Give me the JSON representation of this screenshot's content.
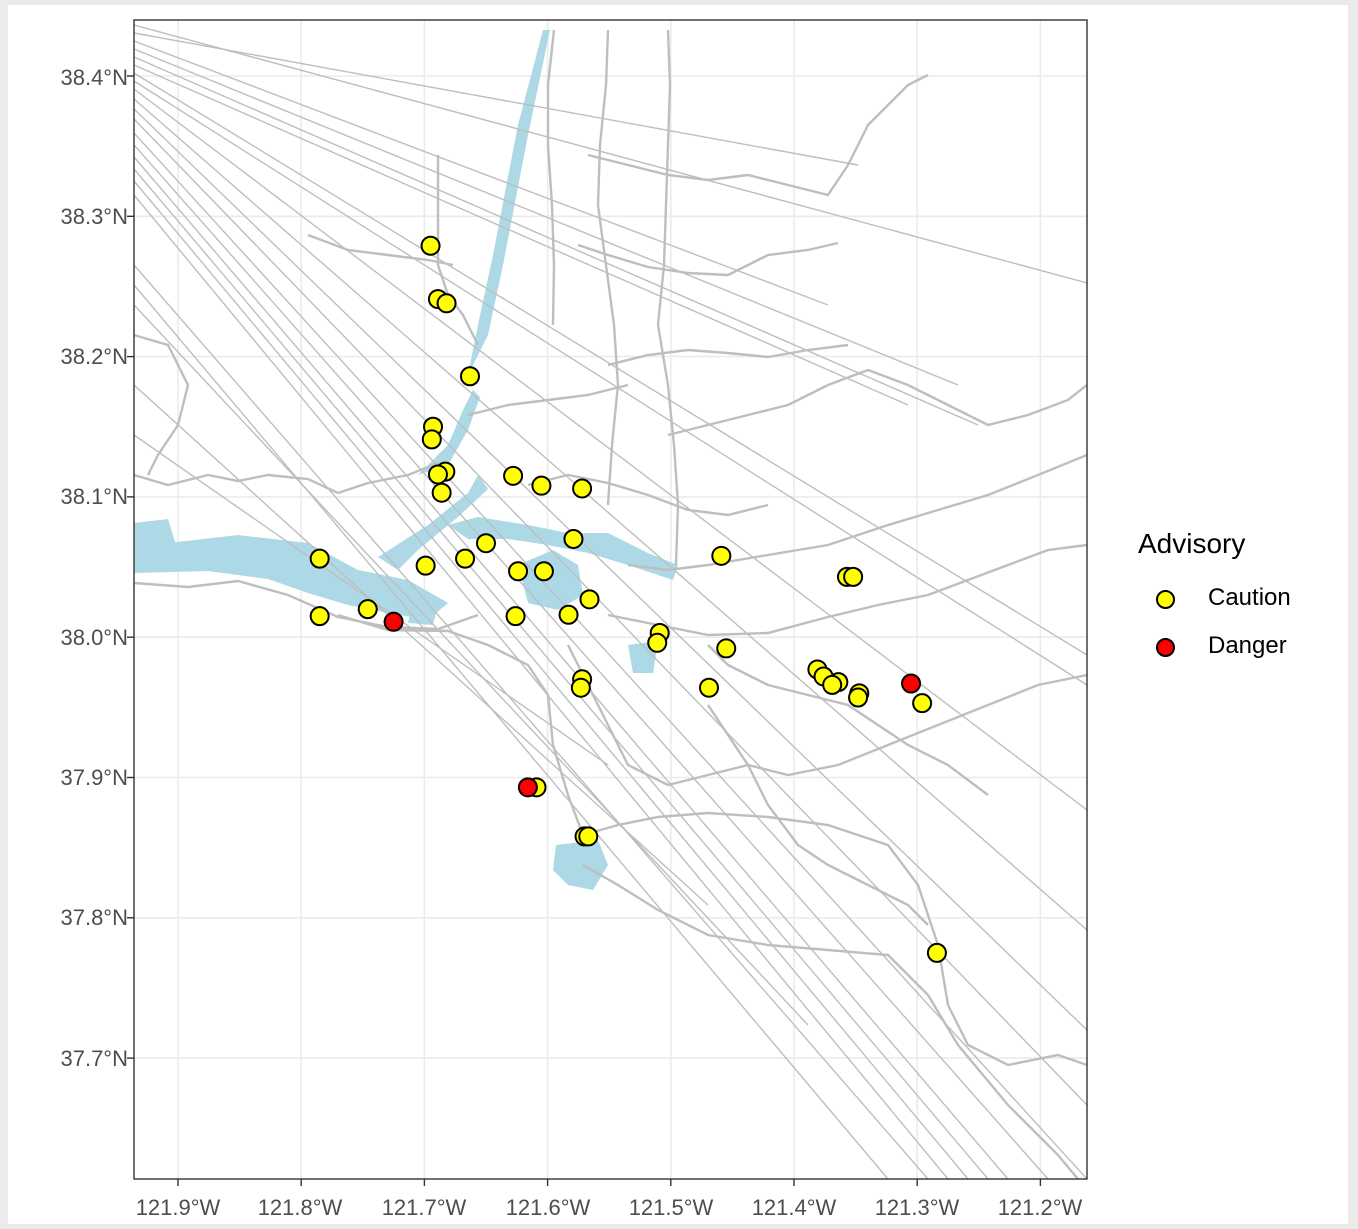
{
  "map": {
    "axis": {
      "lat_ticks": [
        "38.4°N",
        "38.3°N",
        "38.2°N",
        "38.1°N",
        "38.0°N",
        "37.9°N",
        "37.8°N",
        "37.7°N"
      ],
      "lon_ticks": [
        "121.9°W",
        "121.8°W",
        "121.7°W",
        "121.6°W",
        "121.5°W",
        "121.4°W",
        "121.3°W",
        "121.2°W"
      ]
    },
    "colors": {
      "water": "#add8e6",
      "linework": "#bebebe",
      "grid": "#ebebeb",
      "caution": "#ffff00",
      "danger": "#ff0000"
    },
    "legend": {
      "title": "Advisory",
      "items": [
        {
          "label": "Caution",
          "color": "#ffff00"
        },
        {
          "label": "Danger",
          "color": "#ff0000"
        }
      ]
    },
    "points": [
      {
        "lon": -121.695,
        "lat": 38.279,
        "advisory": "Caution"
      },
      {
        "lon": -121.689,
        "lat": 38.241,
        "advisory": "Caution"
      },
      {
        "lon": -121.682,
        "lat": 38.238,
        "advisory": "Caution"
      },
      {
        "lon": -121.663,
        "lat": 38.186,
        "advisory": "Caution"
      },
      {
        "lon": -121.693,
        "lat": 38.15,
        "advisory": "Caution"
      },
      {
        "lon": -121.694,
        "lat": 38.141,
        "advisory": "Caution"
      },
      {
        "lon": -121.683,
        "lat": 38.118,
        "advisory": "Caution"
      },
      {
        "lon": -121.689,
        "lat": 38.116,
        "advisory": "Caution"
      },
      {
        "lon": -121.686,
        "lat": 38.103,
        "advisory": "Caution"
      },
      {
        "lon": -121.628,
        "lat": 38.115,
        "advisory": "Caution"
      },
      {
        "lon": -121.605,
        "lat": 38.108,
        "advisory": "Caution"
      },
      {
        "lon": -121.572,
        "lat": 38.106,
        "advisory": "Caution"
      },
      {
        "lon": -121.65,
        "lat": 38.067,
        "advisory": "Caution"
      },
      {
        "lon": -121.667,
        "lat": 38.056,
        "advisory": "Caution"
      },
      {
        "lon": -121.699,
        "lat": 38.051,
        "advisory": "Caution"
      },
      {
        "lon": -121.785,
        "lat": 38.056,
        "advisory": "Caution"
      },
      {
        "lon": -121.624,
        "lat": 38.047,
        "advisory": "Caution"
      },
      {
        "lon": -121.603,
        "lat": 38.047,
        "advisory": "Caution"
      },
      {
        "lon": -121.579,
        "lat": 38.07,
        "advisory": "Caution"
      },
      {
        "lon": -121.459,
        "lat": 38.058,
        "advisory": "Caution"
      },
      {
        "lon": -121.357,
        "lat": 38.043,
        "advisory": "Caution"
      },
      {
        "lon": -121.352,
        "lat": 38.043,
        "advisory": "Caution"
      },
      {
        "lon": -121.566,
        "lat": 38.027,
        "advisory": "Caution"
      },
      {
        "lon": -121.746,
        "lat": 38.02,
        "advisory": "Caution"
      },
      {
        "lon": -121.785,
        "lat": 38.015,
        "advisory": "Caution"
      },
      {
        "lon": -121.725,
        "lat": 38.011,
        "advisory": "Danger"
      },
      {
        "lon": -121.626,
        "lat": 38.015,
        "advisory": "Caution"
      },
      {
        "lon": -121.583,
        "lat": 38.016,
        "advisory": "Caution"
      },
      {
        "lon": -121.509,
        "lat": 38.003,
        "advisory": "Caution"
      },
      {
        "lon": -121.511,
        "lat": 37.996,
        "advisory": "Caution"
      },
      {
        "lon": -121.455,
        "lat": 37.992,
        "advisory": "Caution"
      },
      {
        "lon": -121.572,
        "lat": 37.97,
        "advisory": "Caution"
      },
      {
        "lon": -121.573,
        "lat": 37.964,
        "advisory": "Caution"
      },
      {
        "lon": -121.469,
        "lat": 37.964,
        "advisory": "Caution"
      },
      {
        "lon": -121.381,
        "lat": 37.977,
        "advisory": "Caution"
      },
      {
        "lon": -121.376,
        "lat": 37.972,
        "advisory": "Caution"
      },
      {
        "lon": -121.364,
        "lat": 37.968,
        "advisory": "Caution"
      },
      {
        "lon": -121.369,
        "lat": 37.966,
        "advisory": "Caution"
      },
      {
        "lon": -121.347,
        "lat": 37.96,
        "advisory": "Caution"
      },
      {
        "lon": -121.348,
        "lat": 37.957,
        "advisory": "Caution"
      },
      {
        "lon": -121.305,
        "lat": 37.967,
        "advisory": "Danger"
      },
      {
        "lon": -121.296,
        "lat": 37.953,
        "advisory": "Caution"
      },
      {
        "lon": -121.609,
        "lat": 37.893,
        "advisory": "Caution"
      },
      {
        "lon": -121.616,
        "lat": 37.893,
        "advisory": "Danger"
      },
      {
        "lon": -121.57,
        "lat": 37.858,
        "advisory": "Caution"
      },
      {
        "lon": -121.567,
        "lat": 37.858,
        "advisory": "Caution"
      },
      {
        "lon": -121.284,
        "lat": 37.775,
        "advisory": "Caution"
      }
    ]
  }
}
